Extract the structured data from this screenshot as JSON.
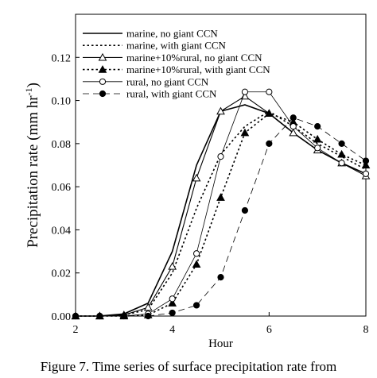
{
  "caption": "Figure 7. Time series of surface precipitation rate from",
  "chart_data": {
    "type": "line",
    "xlabel": "Hour",
    "ylabel": "Precipitation rate (mm hr",
    "ylabel_sup": "-1",
    "ylabel_close": ")",
    "xlim": [
      2,
      8
    ],
    "ylim": [
      0,
      0.14
    ],
    "xticks": [
      2,
      4,
      6,
      8
    ],
    "xtick_labels": [
      "2",
      "4",
      "6",
      "8"
    ],
    "yticks": [
      0,
      0.02,
      0.04,
      0.06,
      0.08,
      0.1,
      0.12
    ],
    "ytick_labels": [
      "0.00",
      "0.02",
      "0.04",
      "0.06",
      "0.08",
      "0.10",
      "0.12"
    ],
    "grid": false,
    "legend_position": "top-left",
    "x": [
      2,
      2.5,
      3,
      3.5,
      4,
      4.5,
      5,
      5.5,
      6,
      6.5,
      7,
      7.5,
      8
    ],
    "series": [
      {
        "name": "marine, no giant CCN",
        "line": "solid",
        "width": 1.6,
        "marker": "none",
        "values": [
          0,
          0,
          0.001,
          0.006,
          0.03,
          0.07,
          0.095,
          0.098,
          0.094,
          0.085,
          0.077,
          0.071,
          0.066
        ]
      },
      {
        "name": "marine, with giant CCN",
        "line": "dotted",
        "width": 1.6,
        "marker": "none",
        "values": [
          0,
          0,
          0.0005,
          0.003,
          0.02,
          0.05,
          0.075,
          0.088,
          0.095,
          0.088,
          0.08,
          0.074,
          0.068
        ]
      },
      {
        "name": "marine+10%rural, no giant CCN",
        "line": "solid",
        "width": 1.1,
        "marker": "triangle-open",
        "values": [
          0,
          0,
          0.0005,
          0.004,
          0.023,
          0.064,
          0.095,
          0.102,
          0.094,
          0.085,
          0.077,
          0.071,
          0.065
        ]
      },
      {
        "name": "marine+10%rural, with giant CCN",
        "line": "dotted",
        "width": 1.6,
        "marker": "triangle-filled",
        "values": [
          0,
          0,
          0,
          0.0005,
          0.006,
          0.024,
          0.055,
          0.085,
          0.094,
          0.09,
          0.082,
          0.075,
          0.07
        ]
      },
      {
        "name": "rural, no giant CCN",
        "line": "solid",
        "width": 0.8,
        "marker": "circle-open",
        "values": [
          0,
          0,
          0,
          0.001,
          0.008,
          0.029,
          0.074,
          0.104,
          0.104,
          0.088,
          0.078,
          0.071,
          0.066
        ]
      },
      {
        "name": "rural, with giant CCN",
        "line": "dashed",
        "width": 0.8,
        "marker": "circle-filled",
        "values": [
          0,
          0,
          0,
          0,
          0.0015,
          0.005,
          0.018,
          0.049,
          0.08,
          0.092,
          0.088,
          0.08,
          0.072
        ]
      }
    ]
  }
}
